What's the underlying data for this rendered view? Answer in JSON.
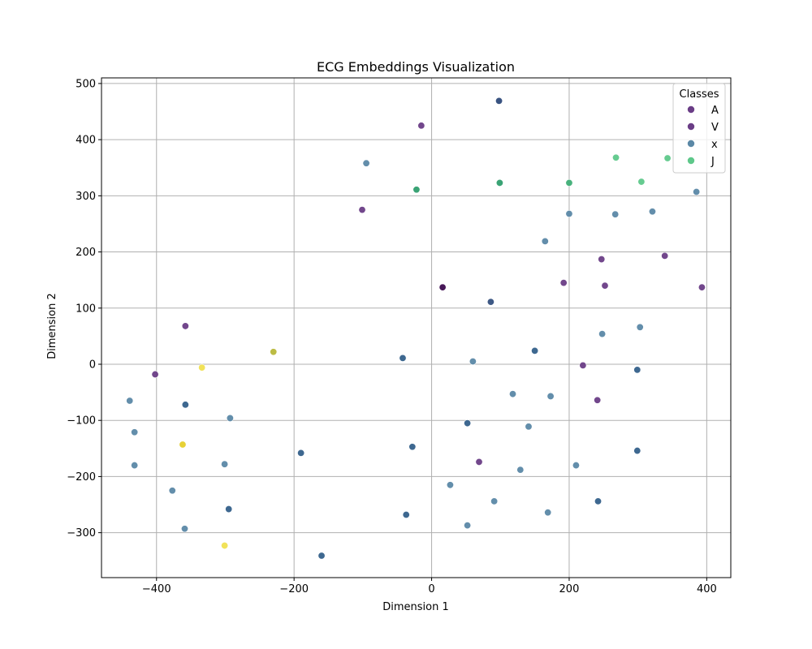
{
  "chart_data": {
    "type": "scatter",
    "title": "ECG Embeddings Visualization",
    "xlabel": "Dimension 1",
    "ylabel": "Dimension 2",
    "xlim": [
      -480,
      435
    ],
    "ylim": [
      -380,
      510
    ],
    "xticks": [
      -400,
      -200,
      0,
      200,
      400
    ],
    "yticks": [
      -300,
      -200,
      -100,
      0,
      100,
      200,
      300,
      400,
      500
    ],
    "grid": true,
    "legend": {
      "title": "Classes",
      "placement": "top-right",
      "entries": [
        {
          "label": "A",
          "color": "#6a3d86"
        },
        {
          "label": "V",
          "color": "#6a3d86"
        },
        {
          "label": "x",
          "color": "#5b88a6"
        },
        {
          "label": "J",
          "color": "#5ec88a"
        }
      ]
    },
    "points": [
      {
        "x": 98,
        "y": 469,
        "color": "#2e4a7a"
      },
      {
        "x": -15,
        "y": 425,
        "color": "#6a3d86"
      },
      {
        "x": -95,
        "y": 358,
        "color": "#5b88a6"
      },
      {
        "x": -22,
        "y": 311,
        "color": "#2f9e6e"
      },
      {
        "x": 99,
        "y": 323,
        "color": "#2f9e6e"
      },
      {
        "x": 200,
        "y": 323,
        "color": "#3fae76"
      },
      {
        "x": 268,
        "y": 368,
        "color": "#5ec88a"
      },
      {
        "x": 343,
        "y": 367,
        "color": "#5ec88a"
      },
      {
        "x": 305,
        "y": 325,
        "color": "#5ec88a"
      },
      {
        "x": 385,
        "y": 307,
        "color": "#5b88a6"
      },
      {
        "x": 200,
        "y": 268,
        "color": "#5b88a6"
      },
      {
        "x": 267,
        "y": 267,
        "color": "#5b88a6"
      },
      {
        "x": 321,
        "y": 272,
        "color": "#5b88a6"
      },
      {
        "x": -101,
        "y": 275,
        "color": "#6a3d86"
      },
      {
        "x": 165,
        "y": 219,
        "color": "#5b88a6"
      },
      {
        "x": 247,
        "y": 187,
        "color": "#6a3d86"
      },
      {
        "x": 339,
        "y": 193,
        "color": "#6a3d86"
      },
      {
        "x": 16,
        "y": 137,
        "color": "#3d0c4f"
      },
      {
        "x": 192,
        "y": 145,
        "color": "#6a3d86"
      },
      {
        "x": 252,
        "y": 140,
        "color": "#6a3d86"
      },
      {
        "x": 393,
        "y": 137,
        "color": "#6a3d86"
      },
      {
        "x": 86,
        "y": 111,
        "color": "#34507e"
      },
      {
        "x": -358,
        "y": 68,
        "color": "#6a3d86"
      },
      {
        "x": 303,
        "y": 66,
        "color": "#5b88a6"
      },
      {
        "x": 248,
        "y": 54,
        "color": "#5b88a6"
      },
      {
        "x": -230,
        "y": 22,
        "color": "#b8b83a"
      },
      {
        "x": -42,
        "y": 11,
        "color": "#34608a"
      },
      {
        "x": 150,
        "y": 24,
        "color": "#34608a"
      },
      {
        "x": 60,
        "y": 5,
        "color": "#5b88a6"
      },
      {
        "x": -334,
        "y": -6,
        "color": "#f0e050"
      },
      {
        "x": 220,
        "y": -2,
        "color": "#6a3d86"
      },
      {
        "x": 299,
        "y": -10,
        "color": "#34608a"
      },
      {
        "x": -402,
        "y": -18,
        "color": "#6a3d86"
      },
      {
        "x": -439,
        "y": -65,
        "color": "#5b88a6"
      },
      {
        "x": -358,
        "y": -72,
        "color": "#34608a"
      },
      {
        "x": 118,
        "y": -53,
        "color": "#5b88a6"
      },
      {
        "x": 173,
        "y": -57,
        "color": "#5b88a6"
      },
      {
        "x": 241,
        "y": -64,
        "color": "#6a3d86"
      },
      {
        "x": -293,
        "y": -96,
        "color": "#5b88a6"
      },
      {
        "x": 52,
        "y": -105,
        "color": "#34608a"
      },
      {
        "x": 141,
        "y": -111,
        "color": "#5b88a6"
      },
      {
        "x": -432,
        "y": -121,
        "color": "#5b88a6"
      },
      {
        "x": -362,
        "y": -143,
        "color": "#e6cf2a"
      },
      {
        "x": -28,
        "y": -147,
        "color": "#34608a"
      },
      {
        "x": 299,
        "y": -154,
        "color": "#34608a"
      },
      {
        "x": -190,
        "y": -158,
        "color": "#34608a"
      },
      {
        "x": 69,
        "y": -174,
        "color": "#6a3d86"
      },
      {
        "x": -432,
        "y": -180,
        "color": "#5b88a6"
      },
      {
        "x": -301,
        "y": -178,
        "color": "#5b88a6"
      },
      {
        "x": 210,
        "y": -180,
        "color": "#5b88a6"
      },
      {
        "x": 129,
        "y": -188,
        "color": "#5b88a6"
      },
      {
        "x": 27,
        "y": -215,
        "color": "#5b88a6"
      },
      {
        "x": -377,
        "y": -225,
        "color": "#5b88a6"
      },
      {
        "x": 91,
        "y": -244,
        "color": "#5b88a6"
      },
      {
        "x": 242,
        "y": -244,
        "color": "#34608a"
      },
      {
        "x": -295,
        "y": -258,
        "color": "#34608a"
      },
      {
        "x": -37,
        "y": -268,
        "color": "#34608a"
      },
      {
        "x": 169,
        "y": -264,
        "color": "#5b88a6"
      },
      {
        "x": 52,
        "y": -287,
        "color": "#5b88a6"
      },
      {
        "x": -359,
        "y": -293,
        "color": "#5b88a6"
      },
      {
        "x": -301,
        "y": -323,
        "color": "#f0e050"
      },
      {
        "x": -160,
        "y": -341,
        "color": "#34608a"
      }
    ]
  }
}
